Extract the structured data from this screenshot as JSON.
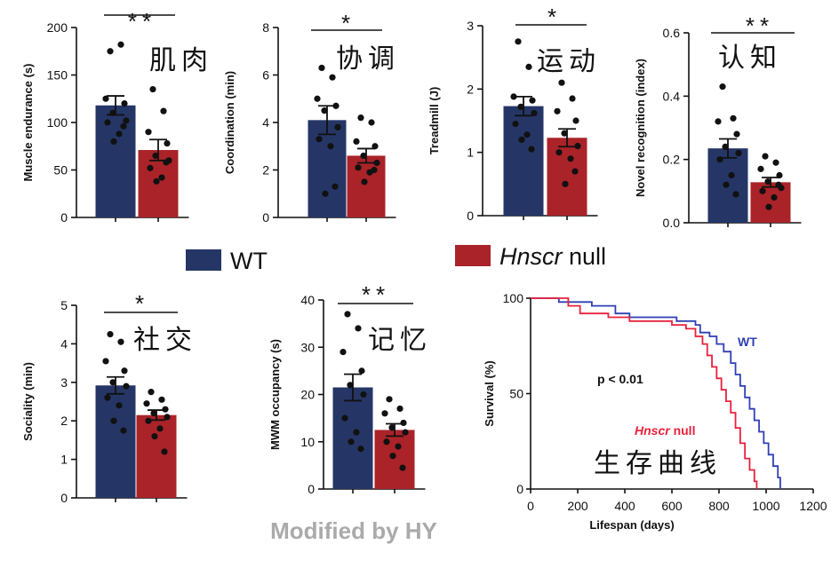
{
  "colors": {
    "wt": "#253666",
    "null": "#aa2329",
    "wt_line": "#2f3fb5",
    "null_line": "#e8213c",
    "credit": "#aaaaaa"
  },
  "legend": {
    "wt": "WT",
    "null_italic": "Hnscr",
    "null_rest": " null"
  },
  "credit": "Modified by HY",
  "chart_data": [
    {
      "type": "bar",
      "panel": "muscle",
      "annotation": "肌肉",
      "significance": "**",
      "ylabel": "Muscle endurance (s)",
      "ylim": [
        0,
        200
      ],
      "yticks": [
        0,
        50,
        100,
        150,
        200
      ],
      "series": [
        {
          "name": "WT",
          "mean": 118,
          "sem": 10,
          "points": [
            175,
            182,
            125,
            120,
            110,
            102,
            100,
            88,
            80,
            96
          ]
        },
        {
          "name": "Hnscr null",
          "mean": 71,
          "sem": 11,
          "points": [
            135,
            112,
            90,
            78,
            65,
            60,
            52,
            42,
            38,
            58
          ]
        }
      ]
    },
    {
      "type": "bar",
      "panel": "coord",
      "annotation": "协调",
      "significance": "*",
      "ylabel": "Coordination (min)",
      "ylim": [
        0,
        8
      ],
      "yticks": [
        0,
        2,
        4,
        6,
        8
      ],
      "series": [
        {
          "name": "WT",
          "mean": 4.1,
          "sem": 0.6,
          "points": [
            6.3,
            5.9,
            5.0,
            4.7,
            4.5,
            3.8,
            3.3,
            3.0,
            1.0,
            1.3
          ]
        },
        {
          "name": "Hnscr null",
          "mean": 2.6,
          "sem": 0.3,
          "points": [
            4.2,
            4.0,
            3.2,
            3.0,
            2.6,
            2.3,
            2.1,
            1.9,
            1.5,
            2.0
          ]
        }
      ]
    },
    {
      "type": "bar",
      "panel": "treadmill",
      "annotation": "运动",
      "significance": "*",
      "ylabel": "Treadmill (J)",
      "ylim": [
        0,
        3
      ],
      "yticks": [
        0,
        1,
        2,
        3
      ],
      "series": [
        {
          "name": "WT",
          "mean": 1.73,
          "sem": 0.15,
          "points": [
            2.75,
            2.35,
            1.88,
            1.82,
            1.72,
            1.62,
            1.45,
            1.28,
            1.2,
            1.05
          ]
        },
        {
          "name": "Hnscr null",
          "mean": 1.23,
          "sem": 0.14,
          "points": [
            2.1,
            1.85,
            1.65,
            1.5,
            1.3,
            1.1,
            1.0,
            0.9,
            0.5,
            0.7
          ]
        }
      ]
    },
    {
      "type": "bar",
      "panel": "novel",
      "annotation": "认知",
      "significance": "**",
      "ylabel": "Novel recognition (index)",
      "ylim": [
        0,
        0.6
      ],
      "yticks": [
        0,
        0.2,
        0.4,
        0.6
      ],
      "ytick_labels": [
        "0.0",
        "0.2",
        "0.4",
        "0.6"
      ],
      "series": [
        {
          "name": "WT",
          "mean": 0.235,
          "sem": 0.03,
          "points": [
            0.43,
            0.33,
            0.32,
            0.28,
            0.24,
            0.22,
            0.2,
            0.15,
            0.12,
            0.09
          ]
        },
        {
          "name": "Hnscr null",
          "mean": 0.128,
          "sem": 0.015,
          "points": [
            0.21,
            0.19,
            0.17,
            0.15,
            0.13,
            0.11,
            0.1,
            0.08,
            0.05,
            0.12
          ]
        }
      ]
    },
    {
      "type": "bar",
      "panel": "social",
      "annotation": "社交",
      "significance": "*",
      "ylabel": "Sociality (min)",
      "ylim": [
        0,
        5
      ],
      "yticks": [
        0,
        1,
        2,
        3,
        4,
        5
      ],
      "series": [
        {
          "name": "WT",
          "mean": 2.92,
          "sem": 0.22,
          "points": [
            4.25,
            4.05,
            3.55,
            3.3,
            3.0,
            2.9,
            2.6,
            2.4,
            2.0,
            1.75
          ]
        },
        {
          "name": "Hnscr null",
          "mean": 2.15,
          "sem": 0.13,
          "points": [
            2.75,
            2.55,
            2.45,
            2.3,
            2.2,
            2.1,
            2.0,
            1.8,
            1.6,
            1.2
          ]
        }
      ]
    },
    {
      "type": "bar",
      "panel": "mwm",
      "annotation": "记忆",
      "significance": "**",
      "ylabel": "MWM occupancy (s)",
      "ylim": [
        0,
        40
      ],
      "yticks": [
        0,
        10,
        20,
        30,
        40
      ],
      "series": [
        {
          "name": "WT",
          "mean": 21.5,
          "sem": 2.8,
          "points": [
            37,
            34,
            29,
            25,
            22,
            20,
            15,
            12,
            10,
            8.5
          ]
        },
        {
          "name": "Hnscr null",
          "mean": 12.5,
          "sem": 1.3,
          "points": [
            19,
            17,
            16,
            14,
            13,
            12,
            10,
            9,
            7,
            4.5
          ]
        }
      ]
    },
    {
      "type": "line",
      "panel": "survival",
      "annotation": "生存曲线",
      "xlabel": "Lifespan (days)",
      "ylabel": "Survival (%)",
      "xlim": [
        0,
        1200
      ],
      "ylim": [
        0,
        100
      ],
      "xticks": [
        0,
        200,
        400,
        600,
        800,
        1000,
        1200
      ],
      "yticks": [
        0,
        50,
        100
      ],
      "pvalue_text": "p < 0.01",
      "series": [
        {
          "name": "WT",
          "label": "WT",
          "x": [
            0,
            100,
            120,
            260,
            360,
            420,
            620,
            700,
            720,
            760,
            790,
            820,
            850,
            870,
            890,
            910,
            930,
            950,
            970,
            990,
            1010,
            1030,
            1050,
            1060
          ],
          "y": [
            100,
            100,
            98,
            96,
            92,
            90,
            88,
            86,
            82,
            80,
            76,
            72,
            66,
            60,
            54,
            48,
            42,
            36,
            30,
            24,
            18,
            12,
            6,
            0
          ]
        },
        {
          "name": "Hnscr null",
          "label_italic": "Hnscr",
          "label_rest": " null",
          "x": [
            0,
            130,
            160,
            210,
            330,
            420,
            600,
            660,
            700,
            730,
            750,
            770,
            790,
            810,
            830,
            850,
            870,
            890,
            910,
            930,
            950,
            960
          ],
          "y": [
            100,
            100,
            96,
            92,
            90,
            88,
            86,
            84,
            80,
            76,
            70,
            64,
            58,
            52,
            46,
            40,
            32,
            24,
            16,
            10,
            4,
            0
          ]
        }
      ]
    }
  ]
}
